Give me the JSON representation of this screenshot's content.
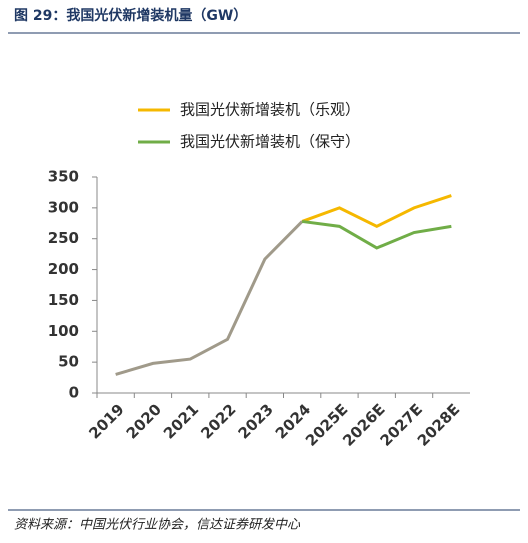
{
  "chart_data": {
    "type": "line",
    "title": "图 29：我国光伏新增装机量（GW）",
    "source": "资料来源：中国光伏行业协会，信达证券研发中心",
    "categories": [
      "2019",
      "2020",
      "2021",
      "2022",
      "2023",
      "2024",
      "2025E",
      "2026E",
      "2027E",
      "2028E"
    ],
    "series": [
      {
        "color": "#a09a8a",
        "values": [
          30,
          48,
          55,
          87,
          217,
          278,
          null,
          null,
          null,
          null
        ]
      },
      {
        "name": "我国光伏新增装机（乐观）",
        "color": "#f5b800",
        "values": [
          null,
          null,
          null,
          null,
          null,
          278,
          300,
          270,
          300,
          320
        ]
      },
      {
        "name": "我国光伏新增装机（保守）",
        "color": "#70ad47",
        "values": [
          null,
          null,
          null,
          null,
          null,
          278,
          270,
          235,
          260,
          270
        ]
      }
    ],
    "ylim": [
      0,
      350
    ],
    "yticks": [
      0,
      50,
      100,
      150,
      200,
      250,
      300,
      350
    ],
    "grid": false
  }
}
